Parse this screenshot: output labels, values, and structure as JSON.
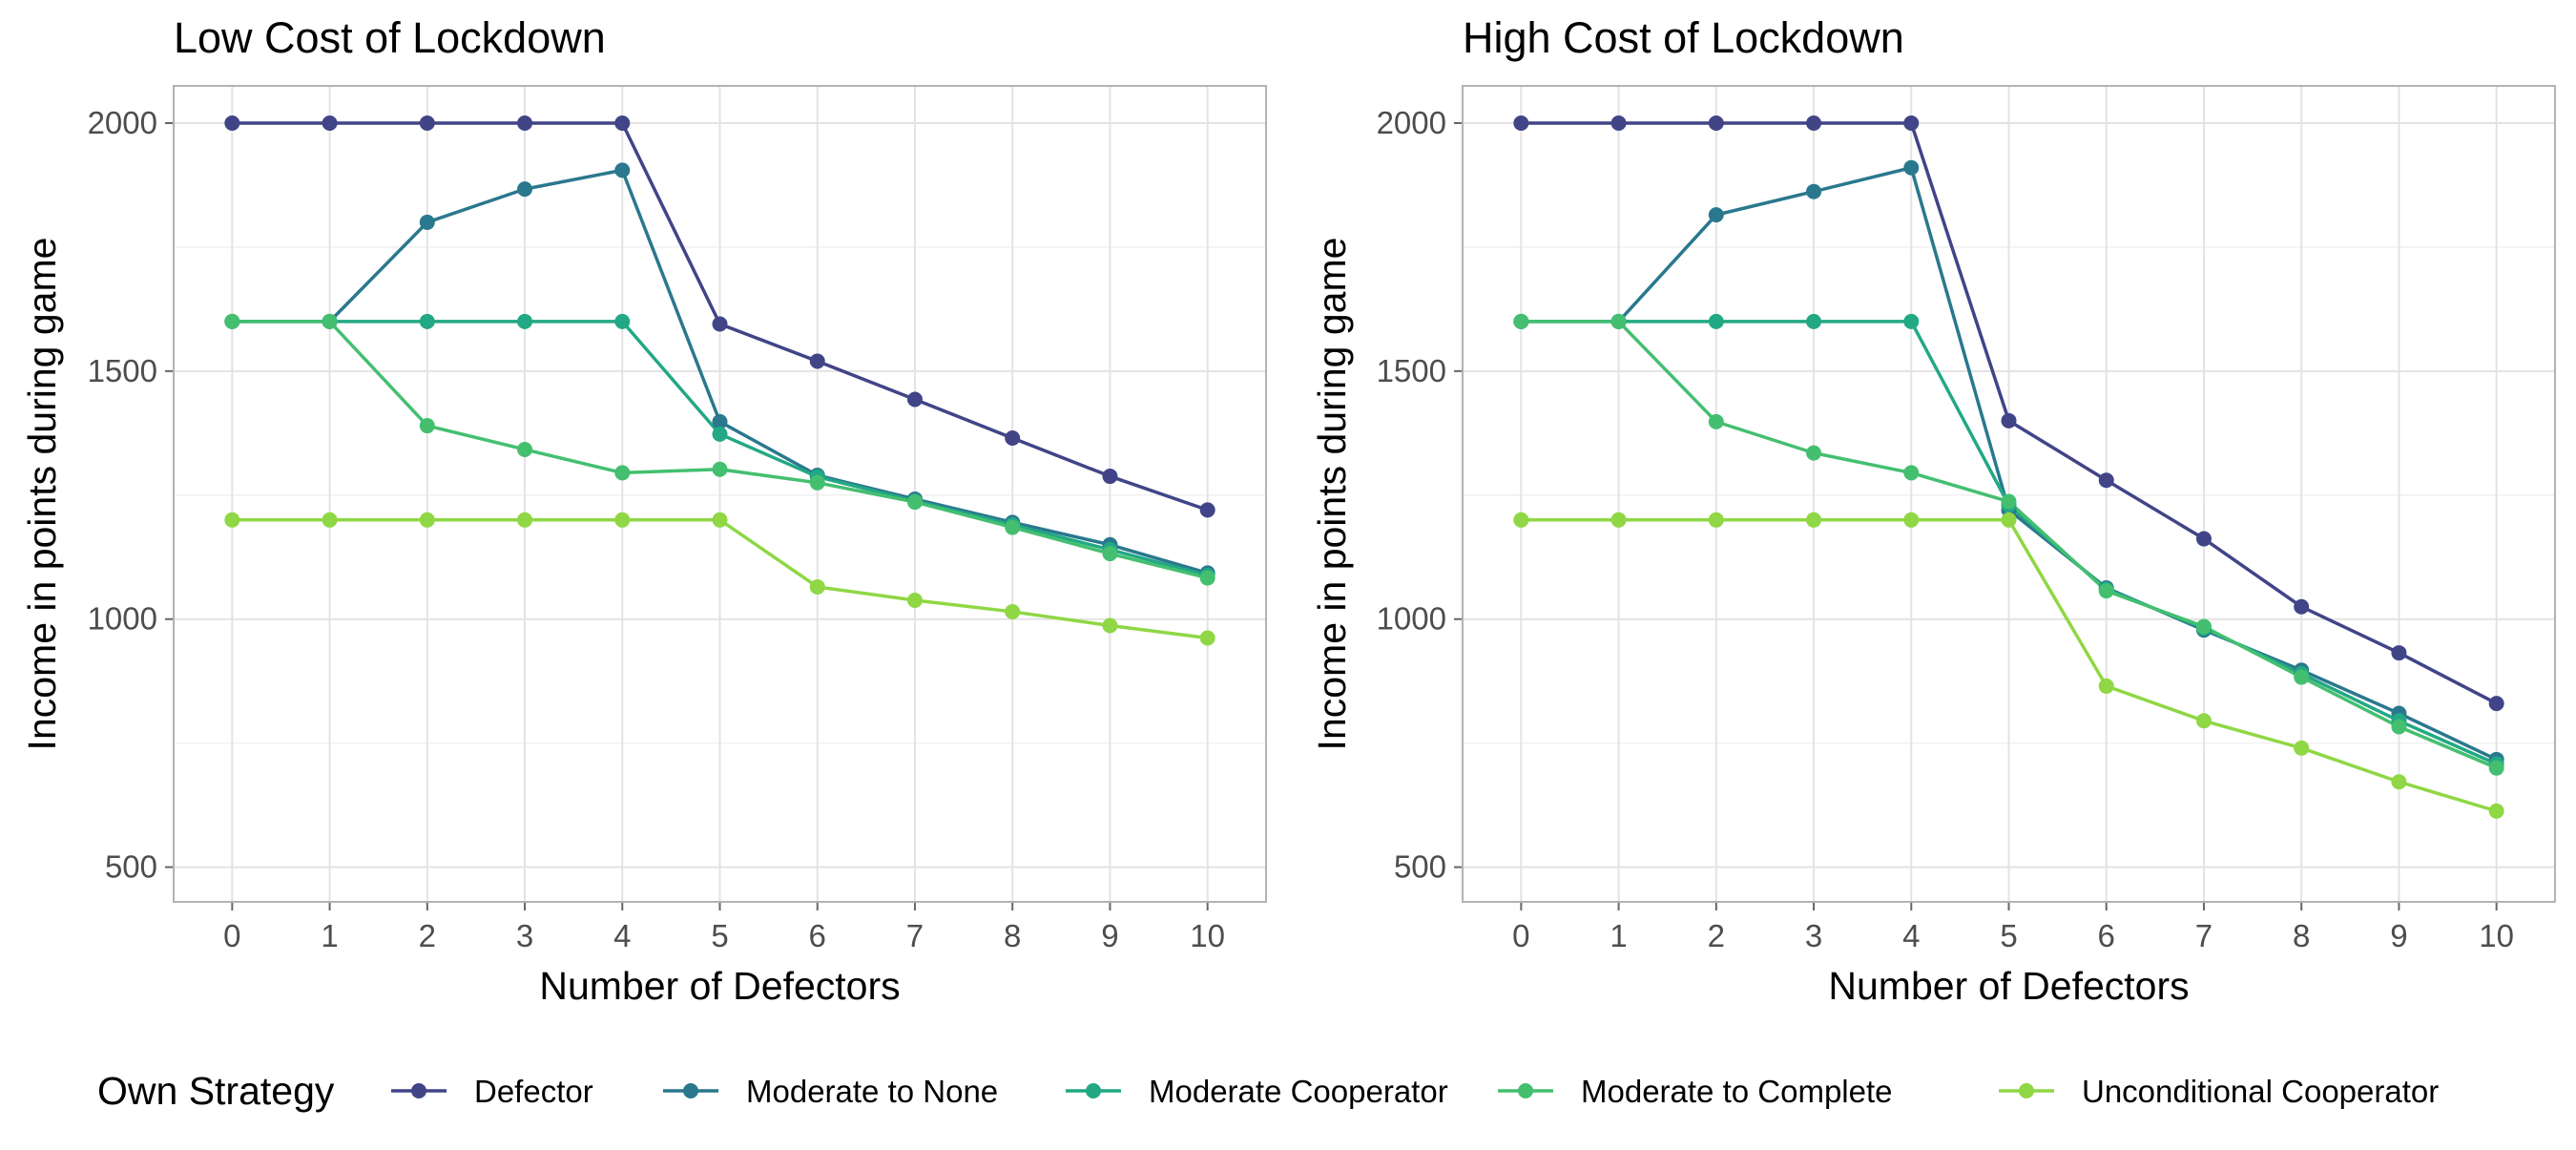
{
  "chart_data": [
    {
      "type": "line",
      "title": "Low Cost of Lockdown",
      "xlabel": "Number of Defectors",
      "ylabel": "Income in points during game",
      "x": [
        0,
        1,
        2,
        3,
        4,
        5,
        6,
        7,
        8,
        9,
        10
      ],
      "ylim": [
        430,
        2075
      ],
      "yticks": [
        500,
        1000,
        1500,
        2000
      ],
      "grid": true,
      "series": [
        {
          "name": "Defector",
          "color": "#414487",
          "values": [
            2000,
            2000,
            2000,
            2000,
            2000,
            1595,
            1520,
            1443,
            1365,
            1288,
            1220
          ]
        },
        {
          "name": "Moderate to None",
          "color": "#2A788E",
          "values": [
            1600,
            1600,
            1800,
            1867,
            1905,
            1398,
            1290,
            1242,
            1195,
            1150,
            1093
          ]
        },
        {
          "name": "Moderate Cooperator",
          "color": "#22A884",
          "values": [
            1600,
            1600,
            1600,
            1600,
            1600,
            1373,
            1287,
            1238,
            1190,
            1140,
            1088
          ]
        },
        {
          "name": "Moderate to Complete",
          "color": "#44BF70",
          "values": [
            1600,
            1600,
            1390,
            1342,
            1295,
            1302,
            1275,
            1236,
            1185,
            1132,
            1083
          ]
        },
        {
          "name": "Unconditional Cooperator",
          "color": "#8FD744",
          "values": [
            1200,
            1200,
            1200,
            1200,
            1200,
            1200,
            1065,
            1038,
            1015,
            987,
            962
          ]
        }
      ]
    },
    {
      "type": "line",
      "title": "High Cost of Lockdown",
      "xlabel": "Number of Defectors",
      "ylabel": "Income in points during game",
      "x": [
        0,
        1,
        2,
        3,
        4,
        5,
        6,
        7,
        8,
        9,
        10
      ],
      "ylim": [
        430,
        2075
      ],
      "yticks": [
        500,
        1000,
        1500,
        2000
      ],
      "grid": true,
      "series": [
        {
          "name": "Defector",
          "color": "#414487",
          "values": [
            2000,
            2000,
            2000,
            2000,
            2000,
            1400,
            1280,
            1162,
            1025,
            932,
            830
          ]
        },
        {
          "name": "Moderate to None",
          "color": "#2A788E",
          "values": [
            1600,
            1600,
            1815,
            1862,
            1910,
            1220,
            1063,
            978,
            897,
            810,
            717
          ]
        },
        {
          "name": "Moderate Cooperator",
          "color": "#22A884",
          "values": [
            1600,
            1600,
            1600,
            1600,
            1600,
            1230,
            1060,
            982,
            890,
            795,
            708
          ]
        },
        {
          "name": "Moderate to Complete",
          "color": "#44BF70",
          "values": [
            1600,
            1600,
            1398,
            1335,
            1295,
            1237,
            1057,
            985,
            883,
            783,
            700
          ]
        },
        {
          "name": "Unconditional Cooperator",
          "color": "#8FD744",
          "values": [
            1200,
            1200,
            1200,
            1200,
            1200,
            1200,
            865,
            795,
            740,
            672,
            613
          ]
        }
      ]
    }
  ],
  "legend": {
    "title": "Own Strategy",
    "position": "bottom",
    "items": [
      {
        "label": "Defector",
        "color": "#414487"
      },
      {
        "label": "Moderate to None",
        "color": "#2A788E"
      },
      {
        "label": "Moderate Cooperator",
        "color": "#22A884"
      },
      {
        "label": "Moderate to Complete",
        "color": "#44BF70"
      },
      {
        "label": "Unconditional Cooperator",
        "color": "#8FD744"
      }
    ]
  }
}
